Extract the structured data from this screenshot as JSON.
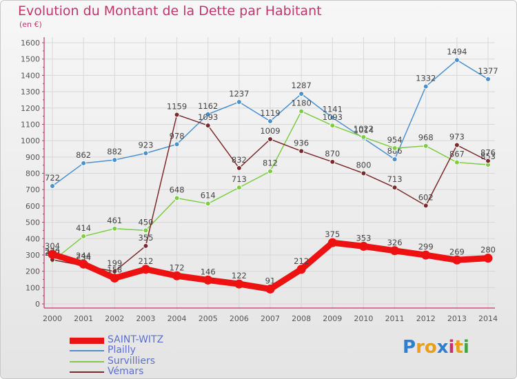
{
  "header": {
    "title": "Evolution du Montant de la Dette par Habitant",
    "unit": "(en €)"
  },
  "logo": {
    "text": "Proxiti",
    "letters": [
      "P",
      "r",
      "o",
      "x",
      "i",
      "t",
      "i"
    ],
    "colors": [
      "#2f7fd1",
      "#e9a017",
      "#e9a017",
      "#2f7fd1",
      "#c0366b",
      "#e9a017",
      "#3aa83a"
    ]
  },
  "chart_data": {
    "type": "line",
    "title": "Evolution du Montant de la Dette par Habitant",
    "ylabel": "(en €)",
    "xlabel": "",
    "x": [
      "2000",
      "2001",
      "2002",
      "2003",
      "2004",
      "2005",
      "2006",
      "2007",
      "2008",
      "2009",
      "2010",
      "2011",
      "2012",
      "2013",
      "2014"
    ],
    "ylim": [
      0,
      1600
    ],
    "yticks": [
      0,
      100,
      200,
      300,
      400,
      500,
      600,
      700,
      800,
      900,
      1000,
      1100,
      1200,
      1300,
      1400,
      1500,
      1600
    ],
    "grid": true,
    "legend_position": "bottom-left",
    "series": [
      {
        "name": "SAINT-WITZ",
        "color": "#ee1111",
        "values": [
          304,
          244,
          158,
          212,
          172,
          146,
          122,
          91,
          212,
          375,
          353,
          326,
          299,
          269,
          280
        ],
        "labels": [
          "304",
          "244",
          "158",
          "212",
          "172",
          "146",
          "122",
          "91",
          "212",
          "375",
          "353",
          "326",
          "299",
          "269",
          "280"
        ]
      },
      {
        "name": "Plailly",
        "color": "#4a90cf",
        "values": [
          722,
          862,
          882,
          923,
          978,
          1162,
          1237,
          1119,
          1287,
          1141,
          1014,
          886,
          1332,
          1494,
          1377
        ],
        "labels": [
          "722",
          "862",
          "882",
          "923",
          "978",
          "1162",
          "1237",
          "1119",
          "1287",
          "1141",
          "1014",
          "886",
          "1332",
          "1494",
          "1377"
        ]
      },
      {
        "name": "Survilliers",
        "color": "#7ccc44",
        "values": [
          262,
          414,
          461,
          450,
          648,
          614,
          713,
          812,
          1180,
          1093,
          1022,
          954,
          968,
          867,
          853
        ],
        "labels": [
          "262",
          "414",
          "461",
          "450",
          "648",
          "614",
          "713",
          "812",
          "1180",
          "1093",
          "1022",
          "954",
          "968",
          "867",
          "853"
        ]
      },
      {
        "name": "Vémars",
        "color": "#7a2a2a",
        "values": [
          270,
          234,
          199,
          355,
          1159,
          1093,
          832,
          1009,
          936,
          870,
          800,
          713,
          602,
          973,
          876
        ],
        "labels": [
          "270",
          "234",
          "199",
          "355",
          "1159",
          "1093",
          "832",
          "1009",
          "936",
          "870",
          "800",
          "713",
          "602",
          "973",
          "876"
        ]
      }
    ]
  }
}
